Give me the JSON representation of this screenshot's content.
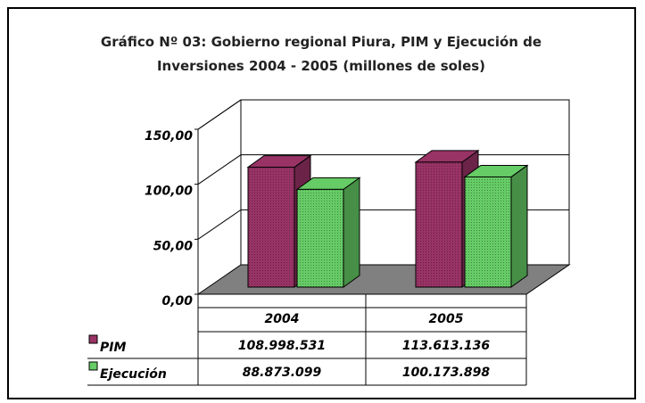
{
  "chart_data": {
    "type": "bar3d",
    "title": "Gráfico Nº 03: Gobierno regional Piura, PIM y Ejecución de Inversiones 2004 - 2005 (millones de soles)",
    "categories": [
      "2004",
      "2005"
    ],
    "series": [
      {
        "name": "PIM",
        "color": "#993366",
        "values": [
          108.998531,
          113.613136
        ],
        "value_labels": [
          "108.998.531",
          "113.613.136"
        ]
      },
      {
        "name": "Ejecución",
        "color": "#66cc66",
        "values": [
          88.873099,
          100.173898
        ],
        "value_labels": [
          "88.873.099",
          "100.173.898"
        ]
      }
    ],
    "ylim": [
      0,
      150
    ],
    "yticks": [
      {
        "value": 0,
        "label": "0,00"
      },
      {
        "value": 50,
        "label": "50,00"
      },
      {
        "value": 100,
        "label": "100,00"
      },
      {
        "value": 150,
        "label": "150,00"
      }
    ],
    "grid": true
  }
}
